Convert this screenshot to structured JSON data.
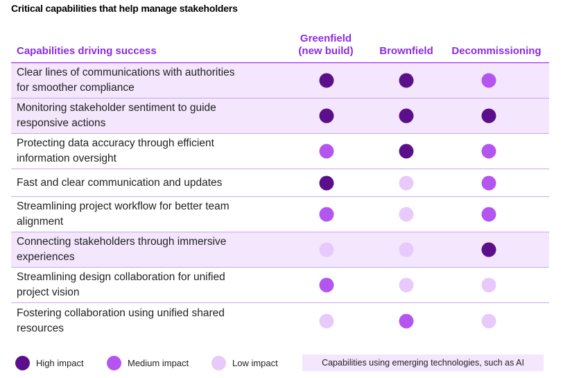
{
  "title": "Critical capabilities that help manage stakeholders",
  "colors": {
    "high": "#5c0f8b",
    "medium": "#b455f0",
    "low": "#e8c9fb",
    "emerging_bg": "#f3e6fd",
    "header_text": "#8a2be2",
    "header_rule": "#a000ff",
    "row_rule": "#c9a6ef"
  },
  "header": {
    "capabilities": "Capabilities driving success",
    "greenfield_line1": "Greenfield",
    "greenfield_line2": "(new build)",
    "brownfield": "Brownfield",
    "decommissioning": "Decommissioning"
  },
  "rows": [
    {
      "line1": "Clear lines of communications with authorities",
      "line2": "for smoother compliance",
      "emerging": true,
      "greenfield": "high",
      "brownfield": "high",
      "decommissioning": "medium"
    },
    {
      "line1": "Monitoring stakeholder sentiment to guide",
      "line2": "responsive actions",
      "emerging": true,
      "greenfield": "high",
      "brownfield": "high",
      "decommissioning": "high"
    },
    {
      "line1": "Protecting data accuracy through efficient",
      "line2": "information oversight",
      "emerging": false,
      "greenfield": "medium",
      "brownfield": "high",
      "decommissioning": "medium"
    },
    {
      "line1": "Fast and clear communication and updates",
      "line2": "",
      "emerging": false,
      "greenfield": "high",
      "brownfield": "low",
      "decommissioning": "medium"
    },
    {
      "line1": "Streamlining project workflow for better team",
      "line2": "alignment",
      "emerging": false,
      "greenfield": "medium",
      "brownfield": "low",
      "decommissioning": "medium"
    },
    {
      "line1": "Connecting stakeholders through immersive",
      "line2": "experiences",
      "emerging": true,
      "greenfield": "low",
      "brownfield": "low",
      "decommissioning": "high"
    },
    {
      "line1": "Streamlining design collaboration for unified",
      "line2": "project vision",
      "emerging": false,
      "greenfield": "medium",
      "brownfield": "low",
      "decommissioning": "low"
    },
    {
      "line1": "Fostering collaboration using unified shared",
      "line2": "resources",
      "emerging": false,
      "greenfield": "low",
      "brownfield": "medium",
      "decommissioning": "low"
    }
  ],
  "legend": {
    "high": "High impact",
    "medium": "Medium impact",
    "low": "Low impact",
    "emerging": "Capabilities using emerging technologies, such as AI"
  }
}
